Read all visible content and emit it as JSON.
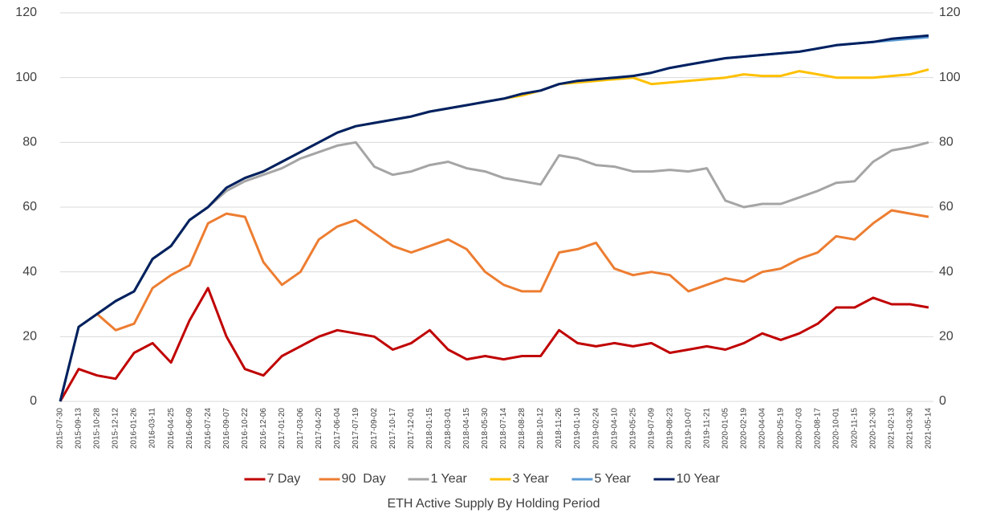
{
  "chart_data": {
    "type": "line",
    "title": "ETH Active Supply By Holding Period",
    "categories": [
      "2015-07-30",
      "2015-09-13",
      "2015-10-28",
      "2015-12-12",
      "2016-01-26",
      "2016-03-11",
      "2016-04-25",
      "2016-06-09",
      "2016-07-24",
      "2016-09-07",
      "2016-10-22",
      "2016-12-06",
      "2017-01-20",
      "2017-03-06",
      "2017-04-20",
      "2017-06-04",
      "2017-07-19",
      "2017-09-02",
      "2017-10-17",
      "2017-12-01",
      "2018-01-15",
      "2018-03-01",
      "2018-04-15",
      "2018-05-30",
      "2018-07-14",
      "2018-08-28",
      "2018-10-12",
      "2018-11-26",
      "2019-01-10",
      "2019-02-24",
      "2019-04-10",
      "2019-05-25",
      "2019-07-09",
      "2019-08-23",
      "2019-10-07",
      "2019-11-21",
      "2020-01-05",
      "2020-02-19",
      "2020-04-04",
      "2020-05-19",
      "2020-07-03",
      "2020-08-17",
      "2020-10-01",
      "2020-11-15",
      "2020-12-30",
      "2021-02-13",
      "2021-03-30",
      "2021-05-14"
    ],
    "series": [
      {
        "name": "7 Day",
        "color": "#c00000",
        "values": [
          0,
          10,
          8,
          7,
          15,
          18,
          12,
          25,
          35,
          20,
          10,
          8,
          14,
          17,
          20,
          22,
          21,
          20,
          16,
          18,
          22,
          16,
          13,
          14,
          13,
          14,
          14,
          22,
          18,
          17,
          18,
          17,
          18,
          15,
          16,
          17,
          16,
          18,
          21,
          19,
          21,
          24,
          29,
          29,
          32,
          30,
          30,
          29
        ]
      },
      {
        "name": "90  Day",
        "color": "#ed7d31",
        "values": [
          null,
          null,
          27,
          22,
          24,
          35,
          39,
          42,
          55,
          58,
          57,
          43,
          36,
          40,
          50,
          54,
          56,
          52,
          48,
          46,
          48,
          50,
          47,
          40,
          36,
          34,
          34,
          46,
          47,
          49,
          41,
          39,
          40,
          39,
          34,
          36,
          38,
          37,
          40,
          41,
          44,
          46,
          51,
          50,
          55,
          59,
          58,
          57
        ]
      },
      {
        "name": "1 Year",
        "color": "#a5a5a5",
        "values": [
          0,
          23,
          27,
          31,
          34,
          44,
          48,
          56,
          60,
          65,
          68,
          70,
          72,
          75,
          77,
          79,
          80,
          72.5,
          70,
          71,
          73,
          74,
          72,
          71,
          69,
          68,
          67,
          76,
          75,
          73,
          72.5,
          71,
          71,
          71.5,
          71,
          72,
          62,
          60,
          61,
          61,
          63,
          65,
          67.5,
          68,
          74,
          77.5,
          78.5,
          80
        ]
      },
      {
        "name": "3 Year",
        "color": "#ffc000",
        "values": [
          0,
          23,
          27,
          31,
          34,
          44,
          48,
          56,
          60,
          66,
          69,
          71,
          74,
          77,
          80,
          83,
          85,
          86,
          87,
          88,
          89.5,
          90.5,
          91.5,
          92.5,
          93.5,
          94.5,
          96,
          98,
          98.5,
          99,
          99.5,
          100,
          98,
          98.5,
          99,
          99.5,
          100,
          101,
          100.5,
          100.5,
          102,
          101,
          100,
          100,
          100,
          100.5,
          101,
          102.5
        ]
      },
      {
        "name": "5 Year",
        "color": "#5b9bd5",
        "values": [
          0,
          23,
          27,
          31,
          34,
          44,
          48,
          56,
          60,
          66,
          69,
          71,
          74,
          77,
          80,
          83,
          85,
          86,
          87,
          88,
          89.5,
          90.5,
          91.5,
          92.5,
          93.5,
          95,
          96,
          98,
          99,
          99.5,
          100,
          100.5,
          101.5,
          103,
          104,
          105,
          106,
          106.5,
          107,
          107.5,
          108,
          109,
          110,
          110.5,
          111,
          111.5,
          112,
          112.5
        ]
      },
      {
        "name": "10 Year",
        "color": "#002060",
        "values": [
          0,
          23,
          27,
          31,
          34,
          44,
          48,
          56,
          60,
          66,
          69,
          71,
          74,
          77,
          80,
          83,
          85,
          86,
          87,
          88,
          89.5,
          90.5,
          91.5,
          92.5,
          93.5,
          95,
          96,
          98,
          99,
          99.5,
          100,
          100.5,
          101.5,
          103,
          104,
          105,
          106,
          106.5,
          107,
          107.5,
          108,
          109,
          110,
          110.5,
          111,
          112,
          112.5,
          113
        ]
      }
    ],
    "ylim": [
      0,
      120
    ],
    "yticks": [
      0,
      20,
      40,
      60,
      80,
      100,
      120
    ],
    "y2lim": [
      0,
      120
    ],
    "y2ticks": [
      0,
      20,
      40,
      60,
      80,
      100,
      120
    ],
    "grid": true,
    "legend": "bottom"
  }
}
